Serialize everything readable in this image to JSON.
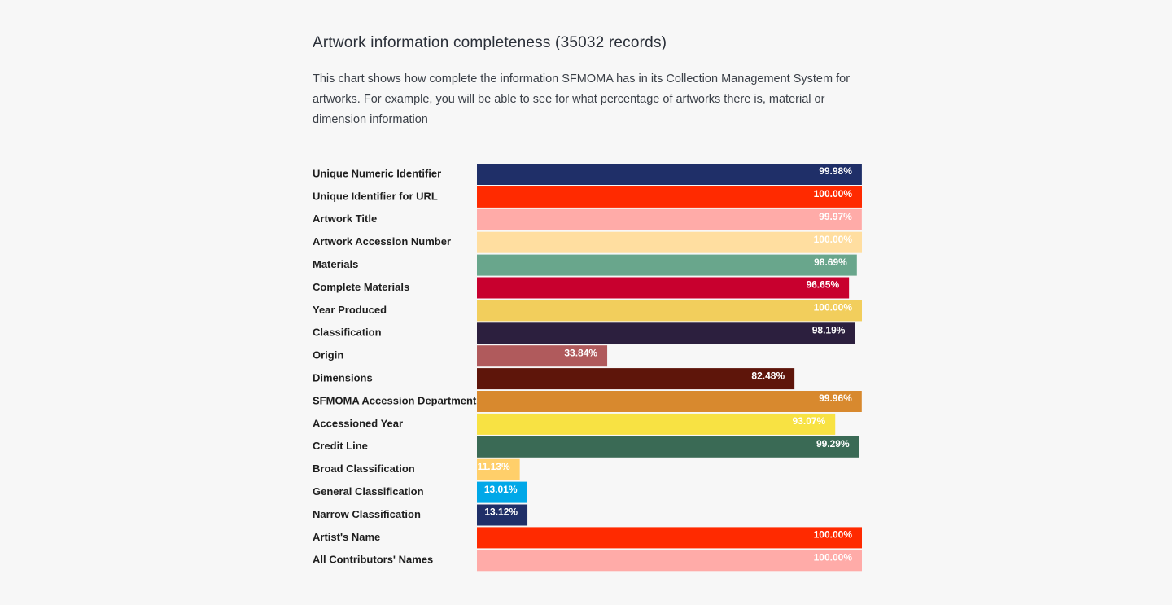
{
  "header": {
    "title": "Artwork information completeness (35032 records)",
    "description": "This chart shows how complete the information SFMOMA has in its Collection Management System for artworks. For example, you will be able to see for what percentage of artworks there is, material or dimension information"
  },
  "chart_data": {
    "type": "bar",
    "orientation": "horizontal",
    "title": "",
    "xlabel": "",
    "ylabel": "",
    "xlim": [
      0,
      100
    ],
    "grid": false,
    "legend": "none",
    "categories": [
      "Unique Numeric Identifier",
      "Unique Identifier for URL",
      "Artwork Title",
      "Artwork Accession Number",
      "Materials",
      "Complete Materials",
      "Year Produced",
      "Classification",
      "Origin",
      "Dimensions",
      "SFMOMA Accession Department",
      "Accessioned Year",
      "Credit Line",
      "Broad Classification",
      "General Classification",
      "Narrow Classification",
      "Artist's Name",
      "All Contributors' Names"
    ],
    "values": [
      99.98,
      100.0,
      99.97,
      100.0,
      98.69,
      96.65,
      100.0,
      98.19,
      33.84,
      82.48,
      99.96,
      93.07,
      99.29,
      11.13,
      13.01,
      13.12,
      100.0,
      100.0
    ],
    "value_labels": [
      "99.98%",
      "100.00%",
      "99.97%",
      "100.00%",
      "98.69%",
      "96.65%",
      "100.00%",
      "98.19%",
      "33.84%",
      "82.48%",
      "99.96%",
      "93.07%",
      "99.29%",
      "11.13%",
      "13.01%",
      "13.12%",
      "100.00%",
      "100.00%"
    ],
    "colors": [
      "#1f2f68",
      "#ff2a00",
      "#ffaba8",
      "#ffdea0",
      "#69a68c",
      "#c8002e",
      "#f2ce5c",
      "#2c1f3e",
      "#b05a5c",
      "#5e150a",
      "#d8892e",
      "#f8e243",
      "#3a6a55",
      "#ffcf6a",
      "#00a8e8",
      "#1f2f68",
      "#ff2a00",
      "#ffaba8"
    ]
  }
}
